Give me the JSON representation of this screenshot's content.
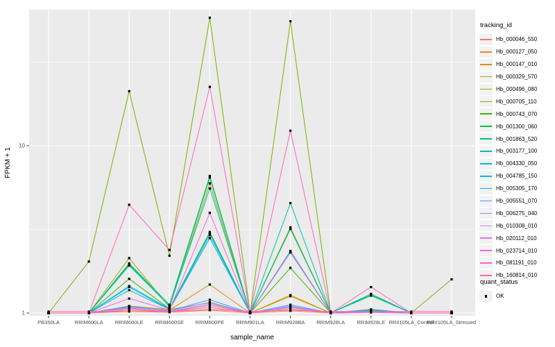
{
  "chart_data": {
    "type": "line",
    "title": "",
    "xlabel": "sample_name",
    "ylabel": "FPKM + 1",
    "y_scale": "log10",
    "y_ticks": [
      1,
      10
    ],
    "y_minor_gridlines": [
      3.1623,
      31.623
    ],
    "ylim": [
      0.96,
      65
    ],
    "grid": true,
    "panel_bg": "#EBEBEB",
    "grid_color": "#FFFFFF",
    "tick_label_color": "#4D4D4D",
    "point_shape": "square",
    "point_color": "#000000",
    "legend_position": "right",
    "x_categories": [
      "PB350LA",
      "RRIM600LA",
      "RRIM600LE",
      "RRIM600SE",
      "RRIM600PE",
      "RRIM901LA",
      "RRIM928BA",
      "RRIM928LA",
      "RRIM928LE",
      "RRII105LA_Control",
      "RRII105LA_Stressed"
    ],
    "series": [
      {
        "name": "Hb_000046_550",
        "color": "#F8766D",
        "values": [
          1,
          1,
          1.02,
          1.01,
          1.04,
          1,
          1.03,
          1,
          1.01,
          1,
          1
        ]
      },
      {
        "name": "Hb_000127_050",
        "color": "#EA8331",
        "values": [
          1,
          1,
          1.04,
          1.02,
          1.08,
          1,
          1.06,
          1,
          1.01,
          1,
          1
        ]
      },
      {
        "name": "Hb_000147_010",
        "color": "#D89000",
        "values": [
          1,
          1,
          1.08,
          1.04,
          1.48,
          1,
          1.28,
          1,
          1.02,
          1,
          1
        ]
      },
      {
        "name": "Hb_000329_570",
        "color": "#C09B00",
        "values": [
          1,
          1,
          1.1,
          1.05,
          1.15,
          1,
          1.26,
          1,
          1.02,
          1,
          1
        ]
      },
      {
        "name": "Hb_000496_080",
        "color": "#A3A500",
        "values": [
          1,
          1,
          2.13,
          1.08,
          5.95,
          1,
          3.25,
          1,
          1.03,
          1,
          1
        ]
      },
      {
        "name": "Hb_000705_110",
        "color": "#7CAE00",
        "values": [
          1,
          2.03,
          21.2,
          2.2,
          58.3,
          1,
          55.5,
          1,
          1.02,
          1,
          1.59
        ]
      },
      {
        "name": "Hb_000743_070",
        "color": "#39B600",
        "values": [
          1,
          1,
          1.6,
          1.06,
          3.05,
          1,
          1.86,
          1,
          1.05,
          1,
          1
        ]
      },
      {
        "name": "Hb_001300_060",
        "color": "#00BB4E",
        "values": [
          1,
          1,
          1.95,
          1.1,
          6.45,
          1,
          3.2,
          1,
          1.28,
          1,
          1
        ]
      },
      {
        "name": "Hb_001863_520",
        "color": "#00BF7D",
        "values": [
          1,
          1,
          1.98,
          1.12,
          6.6,
          1,
          3.18,
          1,
          1.3,
          1,
          1
        ]
      },
      {
        "name": "Hb_003177_100",
        "color": "#00C1A3",
        "values": [
          1,
          1,
          1.92,
          1.1,
          5.55,
          1,
          4.54,
          1,
          1.27,
          1,
          1
        ]
      },
      {
        "name": "Hb_004330_050",
        "color": "#00BFC4",
        "values": [
          1,
          1,
          1.45,
          1.06,
          3.0,
          1,
          2.35,
          1,
          1.05,
          1,
          1
        ]
      },
      {
        "name": "Hb_004785_150",
        "color": "#00BAE0",
        "values": [
          1,
          1,
          1.43,
          1.05,
          2.92,
          1,
          2.33,
          1,
          1.04,
          1,
          1
        ]
      },
      {
        "name": "Hb_005305_170",
        "color": "#00B0F6",
        "values": [
          1,
          1,
          1.37,
          1.05,
          2.8,
          1,
          2.3,
          1,
          1.04,
          1,
          1
        ]
      },
      {
        "name": "Hb_005551_070",
        "color": "#35A2FF",
        "values": [
          1,
          1,
          1.1,
          1.03,
          1.2,
          1,
          1.12,
          1,
          1.02,
          1,
          1
        ]
      },
      {
        "name": "Hb_006275_040",
        "color": "#9590FF",
        "values": [
          1,
          1,
          1.09,
          1.03,
          1.16,
          1,
          1.1,
          1,
          1.02,
          1,
          1
        ]
      },
      {
        "name": "Hb_010308_010",
        "color": "#C77CFF",
        "values": [
          1,
          1,
          1.07,
          1.02,
          1.13,
          1,
          1.09,
          1,
          1.01,
          1,
          1
        ]
      },
      {
        "name": "Hb_020112_010",
        "color": "#E76BF3",
        "values": [
          1,
          1,
          1.06,
          1.02,
          1.11,
          1,
          1.08,
          1,
          1.01,
          1,
          1
        ]
      },
      {
        "name": "Hb_023714_010",
        "color": "#FA62DB",
        "values": [
          1,
          1,
          1.22,
          1.04,
          3.97,
          1,
          2.31,
          1,
          1.02,
          1,
          1
        ]
      },
      {
        "name": "Hb_081191_010",
        "color": "#FF62BC",
        "values": [
          1,
          1,
          4.44,
          2.38,
          22.5,
          1,
          12.3,
          1,
          1.43,
          1,
          1
        ]
      },
      {
        "name": "Hb_160814_010",
        "color": "#FF6A98",
        "values": [
          1.02,
          1.02,
          1.02,
          1.02,
          1.05,
          1.02,
          1.04,
          1.02,
          1.02,
          1.02,
          1.02
        ]
      }
    ]
  },
  "legend_tracking": {
    "title": "tracking_id"
  },
  "legend_quant": {
    "title": "quant_status",
    "items": [
      {
        "label": "OK"
      }
    ]
  }
}
